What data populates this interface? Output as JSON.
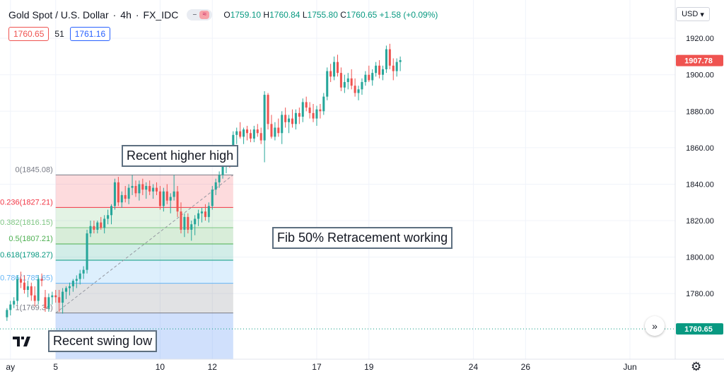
{
  "header": {
    "symbol": "Gold Spot / U.S. Dollar",
    "separator": "·",
    "timeframe": "4h",
    "source": "FX_IDC",
    "pill_icons": [
      "minus-icon",
      "wave-icon"
    ],
    "ohlc": {
      "o_key": "O",
      "o": "1759.10",
      "h_key": "H",
      "h": "1760.84",
      "l_key": "L",
      "l": "1755.80",
      "c_key": "C",
      "c": "1760.65",
      "change": "+1.58 (+0.09%)"
    }
  },
  "inputs": {
    "left_value": "1760.65",
    "middle": "51",
    "right_value": "1761.16"
  },
  "currency_selector": {
    "label": "USD"
  },
  "annotations": {
    "higher_high": "Recent higher high",
    "fib_working": "Fib 50% Retracement working",
    "swing_low": "Recent swing low"
  },
  "colors": {
    "up": "#26a69a",
    "down": "#ef5350",
    "price_tag": "#ef5350",
    "last_tag": "#089981",
    "fib_line": "#787b86"
  },
  "chart_data": {
    "type": "candlestick",
    "title": "Gold Spot / U.S. Dollar",
    "y_ticks": [
      1780,
      1800,
      1820,
      1840,
      1860,
      1880,
      1900,
      1920
    ],
    "y_tick_labels": [
      "1780.00",
      "1800.00",
      "1820.00",
      "1840.00",
      "1860.00",
      "1880.00",
      "1900.00",
      "1920.00"
    ],
    "ylim": [
      1744,
      1941
    ],
    "x_labels": [
      {
        "label": "ay",
        "x": 1
      },
      {
        "label": "5",
        "x": 14
      },
      {
        "label": "10",
        "x": 44
      },
      {
        "label": "12",
        "x": 59
      },
      {
        "label": "17",
        "x": 89
      },
      {
        "label": "19",
        "x": 104
      },
      {
        "label": "24",
        "x": 134
      },
      {
        "label": "26",
        "x": 149
      },
      {
        "label": "Jun",
        "x": 179
      }
    ],
    "price_tags": [
      {
        "label": "1907.78",
        "value": 1907.78,
        "kind": "current"
      },
      {
        "label": "1760.65",
        "value": 1760.65,
        "kind": "last"
      }
    ],
    "fib_levels": [
      {
        "ratio": "0",
        "label": "0(1845.08)",
        "price": 1845.08,
        "color": "#787b86"
      },
      {
        "ratio": "0.236",
        "label": "0.236(1827.21)",
        "price": 1827.21,
        "color": "#f23645"
      },
      {
        "ratio": "0.382",
        "label": "0.382(1816.15)",
        "price": 1816.15,
        "color": "#81c784"
      },
      {
        "ratio": "0.5",
        "label": "0.5(1807.21)",
        "price": 1807.21,
        "color": "#4caf50"
      },
      {
        "ratio": "0.618",
        "label": "0.618(1798.27)",
        "price": 1798.27,
        "color": "#089981"
      },
      {
        "ratio": "0.786",
        "label": "0.786(1785.65)",
        "price": 1785.65,
        "color": "#64b5f6"
      },
      {
        "ratio": "1",
        "label": "1(1769.34)",
        "price": 1769.34,
        "color": "#787b86"
      }
    ],
    "fib_x_range": [
      14,
      65
    ],
    "x_range": [
      -2,
      192
    ],
    "candles": [
      [
        0,
        1767,
        1772,
        1765,
        1771
      ],
      [
        1,
        1771,
        1776,
        1768,
        1774
      ],
      [
        2,
        1774,
        1778,
        1772,
        1776
      ],
      [
        3,
        1776,
        1790,
        1774,
        1788
      ],
      [
        4,
        1788,
        1792,
        1783,
        1786
      ],
      [
        5,
        1786,
        1790,
        1780,
        1782
      ],
      [
        6,
        1782,
        1787,
        1778,
        1784
      ],
      [
        7,
        1784,
        1786,
        1776,
        1779
      ],
      [
        8,
        1779,
        1784,
        1773,
        1776
      ],
      [
        9,
        1776,
        1790,
        1774,
        1788
      ],
      [
        10,
        1788,
        1791,
        1784,
        1787
      ],
      [
        11,
        1778,
        1782,
        1770,
        1772
      ],
      [
        12,
        1772,
        1780,
        1770,
        1778
      ],
      [
        13,
        1778,
        1781,
        1774,
        1779
      ],
      [
        14,
        1779,
        1782,
        1775,
        1778
      ],
      [
        15,
        1778,
        1782,
        1770,
        1775
      ],
      [
        16,
        1775,
        1783,
        1769,
        1781
      ],
      [
        17,
        1781,
        1784,
        1777,
        1783
      ],
      [
        18,
        1783,
        1786,
        1779,
        1784
      ],
      [
        19,
        1784,
        1788,
        1781,
        1787
      ],
      [
        20,
        1787,
        1790,
        1783,
        1788
      ],
      [
        21,
        1788,
        1793,
        1785,
        1791
      ],
      [
        22,
        1791,
        1795,
        1788,
        1793
      ],
      [
        23,
        1793,
        1815,
        1791,
        1813
      ],
      [
        24,
        1813,
        1820,
        1811,
        1817
      ],
      [
        25,
        1817,
        1820,
        1813,
        1815
      ],
      [
        26,
        1815,
        1820,
        1813,
        1819
      ],
      [
        27,
        1819,
        1822,
        1815,
        1816
      ],
      [
        28,
        1816,
        1823,
        1813,
        1821
      ],
      [
        29,
        1821,
        1826,
        1818,
        1823
      ],
      [
        30,
        1823,
        1829,
        1818,
        1828
      ],
      [
        31,
        1828,
        1843,
        1826,
        1841
      ],
      [
        32,
        1841,
        1844,
        1828,
        1830
      ],
      [
        33,
        1830,
        1836,
        1827,
        1834
      ],
      [
        34,
        1834,
        1839,
        1830,
        1832
      ],
      [
        35,
        1832,
        1840,
        1829,
        1838
      ],
      [
        36,
        1838,
        1845,
        1834,
        1839
      ],
      [
        37,
        1839,
        1842,
        1833,
        1835
      ],
      [
        38,
        1835,
        1842,
        1831,
        1840
      ],
      [
        39,
        1840,
        1843,
        1834,
        1837
      ],
      [
        40,
        1837,
        1841,
        1832,
        1839
      ],
      [
        41,
        1839,
        1842,
        1834,
        1836
      ],
      [
        42,
        1836,
        1840,
        1832,
        1838
      ],
      [
        43,
        1838,
        1841,
        1834,
        1836
      ],
      [
        44,
        1836,
        1839,
        1826,
        1828
      ],
      [
        45,
        1828,
        1838,
        1825,
        1836
      ],
      [
        46,
        1836,
        1840,
        1829,
        1831
      ],
      [
        47,
        1831,
        1835,
        1824,
        1833
      ],
      [
        48,
        1833,
        1845,
        1831,
        1836
      ],
      [
        49,
        1836,
        1839,
        1822,
        1825
      ],
      [
        50,
        1825,
        1830,
        1813,
        1815
      ],
      [
        51,
        1815,
        1824,
        1811,
        1822
      ],
      [
        52,
        1822,
        1824,
        1813,
        1815
      ],
      [
        53,
        1815,
        1820,
        1809,
        1818
      ],
      [
        54,
        1818,
        1823,
        1812,
        1821
      ],
      [
        55,
        1821,
        1826,
        1817,
        1824
      ],
      [
        56,
        1824,
        1827,
        1819,
        1825
      ],
      [
        57,
        1825,
        1829,
        1820,
        1822
      ],
      [
        58,
        1822,
        1830,
        1819,
        1828
      ],
      [
        59,
        1828,
        1839,
        1826,
        1837
      ],
      [
        60,
        1837,
        1843,
        1834,
        1841
      ],
      [
        61,
        1841,
        1847,
        1838,
        1845
      ],
      [
        62,
        1845,
        1852,
        1843,
        1850
      ],
      [
        63,
        1850,
        1858,
        1846,
        1854
      ],
      [
        64,
        1854,
        1857,
        1849,
        1852
      ],
      [
        65,
        1852,
        1869,
        1850,
        1867
      ],
      [
        66,
        1867,
        1871,
        1862,
        1869
      ],
      [
        67,
        1869,
        1874,
        1865,
        1866
      ],
      [
        68,
        1866,
        1871,
        1862,
        1870
      ],
      [
        69,
        1870,
        1872,
        1864,
        1868
      ],
      [
        70,
        1868,
        1870,
        1863,
        1865
      ],
      [
        71,
        1865,
        1872,
        1863,
        1870
      ],
      [
        72,
        1870,
        1873,
        1866,
        1868
      ],
      [
        73,
        1868,
        1871,
        1862,
        1864
      ],
      [
        74,
        1864,
        1891,
        1852,
        1889
      ],
      [
        75,
        1889,
        1890,
        1870,
        1873
      ],
      [
        76,
        1873,
        1878,
        1865,
        1866
      ],
      [
        77,
        1866,
        1874,
        1864,
        1871
      ],
      [
        78,
        1871,
        1876,
        1866,
        1868
      ],
      [
        79,
        1868,
        1880,
        1862,
        1878
      ],
      [
        80,
        1878,
        1882,
        1871,
        1874
      ],
      [
        81,
        1874,
        1878,
        1868,
        1876
      ],
      [
        82,
        1876,
        1881,
        1871,
        1873
      ],
      [
        83,
        1873,
        1881,
        1870,
        1879
      ],
      [
        84,
        1879,
        1882,
        1873,
        1877
      ],
      [
        85,
        1877,
        1887,
        1874,
        1885
      ],
      [
        86,
        1885,
        1888,
        1880,
        1882
      ],
      [
        87,
        1882,
        1885,
        1876,
        1879
      ],
      [
        88,
        1879,
        1884,
        1874,
        1876
      ],
      [
        89,
        1876,
        1883,
        1872,
        1881
      ],
      [
        90,
        1881,
        1884,
        1876,
        1880
      ],
      [
        91,
        1880,
        1890,
        1878,
        1888
      ],
      [
        92,
        1888,
        1904,
        1886,
        1902
      ],
      [
        93,
        1902,
        1906,
        1896,
        1899
      ],
      [
        94,
        1899,
        1910,
        1897,
        1907
      ],
      [
        95,
        1907,
        1911,
        1899,
        1901
      ],
      [
        96,
        1901,
        1904,
        1891,
        1893
      ],
      [
        97,
        1893,
        1900,
        1890,
        1896
      ],
      [
        98,
        1896,
        1901,
        1892,
        1898
      ],
      [
        99,
        1898,
        1903,
        1892,
        1894
      ],
      [
        100,
        1894,
        1898,
        1888,
        1890
      ],
      [
        101,
        1890,
        1894,
        1886,
        1892
      ],
      [
        102,
        1892,
        1898,
        1889,
        1896
      ],
      [
        103,
        1896,
        1902,
        1894,
        1900
      ],
      [
        104,
        1900,
        1905,
        1896,
        1897
      ],
      [
        105,
        1897,
        1903,
        1894,
        1901
      ],
      [
        106,
        1901,
        1907,
        1899,
        1905
      ],
      [
        107,
        1905,
        1908,
        1898,
        1900
      ],
      [
        108,
        1900,
        1905,
        1897,
        1903
      ],
      [
        109,
        1903,
        1916,
        1901,
        1914
      ],
      [
        110,
        1914,
        1917,
        1903,
        1905
      ],
      [
        111,
        1905,
        1909,
        1897,
        1902
      ],
      [
        112,
        1902,
        1909,
        1899,
        1907
      ],
      [
        113,
        1907,
        1910,
        1902,
        1908
      ]
    ]
  }
}
